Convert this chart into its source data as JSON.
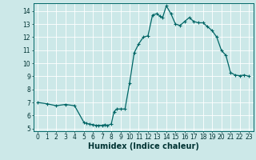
{
  "x": [
    0,
    1,
    2,
    3,
    4,
    5,
    5.3,
    5.6,
    6,
    6.3,
    6.6,
    7,
    7.3,
    7.6,
    8,
    8.3,
    8.6,
    9,
    9.5,
    10,
    10.5,
    11,
    11.5,
    12,
    12.5,
    13,
    13.3,
    13.6,
    14,
    14.5,
    15,
    15.5,
    16,
    16.5,
    17,
    17.5,
    18,
    18.5,
    19,
    19.5,
    20,
    20.5,
    21,
    21.5,
    22,
    22.5,
    23
  ],
  "y": [
    7.0,
    6.9,
    6.75,
    6.85,
    6.75,
    5.5,
    5.4,
    5.35,
    5.3,
    5.25,
    5.25,
    5.25,
    5.3,
    5.25,
    5.35,
    6.3,
    6.5,
    6.5,
    6.5,
    8.5,
    10.8,
    11.5,
    12.0,
    12.1,
    13.7,
    13.8,
    13.6,
    13.5,
    14.4,
    13.8,
    13.0,
    12.9,
    13.2,
    13.5,
    13.2,
    13.1,
    13.1,
    12.8,
    12.5,
    12.0,
    11.0,
    10.6,
    9.3,
    9.1,
    9.05,
    9.1,
    9.0
  ],
  "line_color": "#006666",
  "marker": "+",
  "markersize": 3,
  "markeredgewidth": 0.8,
  "linewidth": 0.9,
  "bg_color": "#cce8e8",
  "grid_color": "#ffffff",
  "xlabel": "Humidex (Indice chaleur)",
  "xlim": [
    -0.5,
    23.5
  ],
  "ylim": [
    4.8,
    14.6
  ],
  "yticks": [
    5,
    6,
    7,
    8,
    9,
    10,
    11,
    12,
    13,
    14
  ],
  "xticks": [
    0,
    1,
    2,
    3,
    4,
    5,
    6,
    7,
    8,
    9,
    10,
    11,
    12,
    13,
    14,
    15,
    16,
    17,
    18,
    19,
    20,
    21,
    22,
    23
  ],
  "tick_fontsize": 5.5,
  "xlabel_fontsize": 7.0
}
